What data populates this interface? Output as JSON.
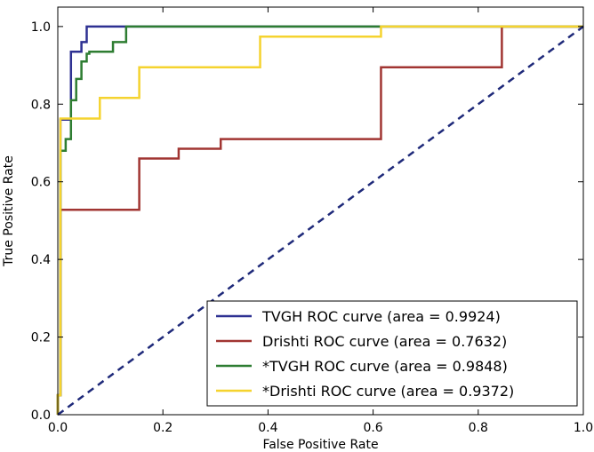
{
  "chart_data": {
    "type": "line",
    "title": "",
    "xlabel": "False Positive Rate",
    "ylabel": "True Positive Rate",
    "xlim": [
      0.0,
      1.0
    ],
    "ylim": [
      0.0,
      1.05
    ],
    "xticks": [
      0.0,
      0.2,
      0.4,
      0.6,
      0.8,
      1.0
    ],
    "xtick_labels": [
      "0.0",
      "0.2",
      "0.4",
      "0.6",
      "0.8",
      "1.0"
    ],
    "yticks": [
      0.0,
      0.2,
      0.4,
      0.6,
      0.8,
      1.0
    ],
    "ytick_labels": [
      "0.0",
      "0.2",
      "0.4",
      "0.6",
      "0.8",
      "1.0"
    ],
    "grid": false,
    "legend_position": "bottom-right",
    "series": [
      {
        "name": "TVGH ROC curve (area = 0.9924)",
        "color": "#2e3192",
        "x": [
          0.0,
          0.0,
          0.005,
          0.005,
          0.025,
          0.025,
          0.045,
          0.045,
          0.055,
          0.055,
          1.0
        ],
        "y": [
          0.0,
          0.05,
          0.05,
          0.76,
          0.76,
          0.935,
          0.935,
          0.96,
          0.96,
          1.0,
          1.0
        ]
      },
      {
        "name": "Drishti ROC curve (area = 0.7632)",
        "color": "#a13532",
        "x": [
          0.0,
          0.0,
          0.005,
          0.005,
          0.155,
          0.155,
          0.23,
          0.23,
          0.31,
          0.31,
          0.615,
          0.615,
          0.845,
          0.845,
          1.0
        ],
        "y": [
          0.0,
          0.05,
          0.05,
          0.528,
          0.528,
          0.66,
          0.66,
          0.685,
          0.685,
          0.71,
          0.71,
          0.895,
          0.895,
          1.0,
          1.0
        ]
      },
      {
        "name": "*TVGH ROC curve (area = 0.9848)",
        "color": "#2e7d32",
        "x": [
          0.0,
          0.0,
          0.005,
          0.005,
          0.015,
          0.015,
          0.025,
          0.025,
          0.035,
          0.035,
          0.045,
          0.045,
          0.055,
          0.055,
          0.06,
          0.06,
          0.105,
          0.105,
          0.13,
          0.13,
          1.0
        ],
        "y": [
          0.0,
          0.05,
          0.05,
          0.68,
          0.68,
          0.71,
          0.71,
          0.81,
          0.81,
          0.865,
          0.865,
          0.91,
          0.91,
          0.93,
          0.93,
          0.935,
          0.935,
          0.96,
          0.96,
          1.0,
          1.0
        ]
      },
      {
        "name": "*Drishti ROC curve (area = 0.9372)",
        "color": "#f5d32f",
        "x": [
          0.0,
          0.0,
          0.005,
          0.005,
          0.08,
          0.08,
          0.155,
          0.155,
          0.385,
          0.385,
          0.615,
          0.615,
          1.0
        ],
        "y": [
          0.0,
          0.05,
          0.05,
          0.763,
          0.763,
          0.816,
          0.816,
          0.895,
          0.895,
          0.974,
          0.974,
          1.0,
          1.0
        ]
      }
    ],
    "reference_line": {
      "name": "chance",
      "color": "#1f2a7a",
      "style": "dashed",
      "x": [
        0.0,
        1.0
      ],
      "y": [
        0.0,
        1.0
      ]
    }
  }
}
